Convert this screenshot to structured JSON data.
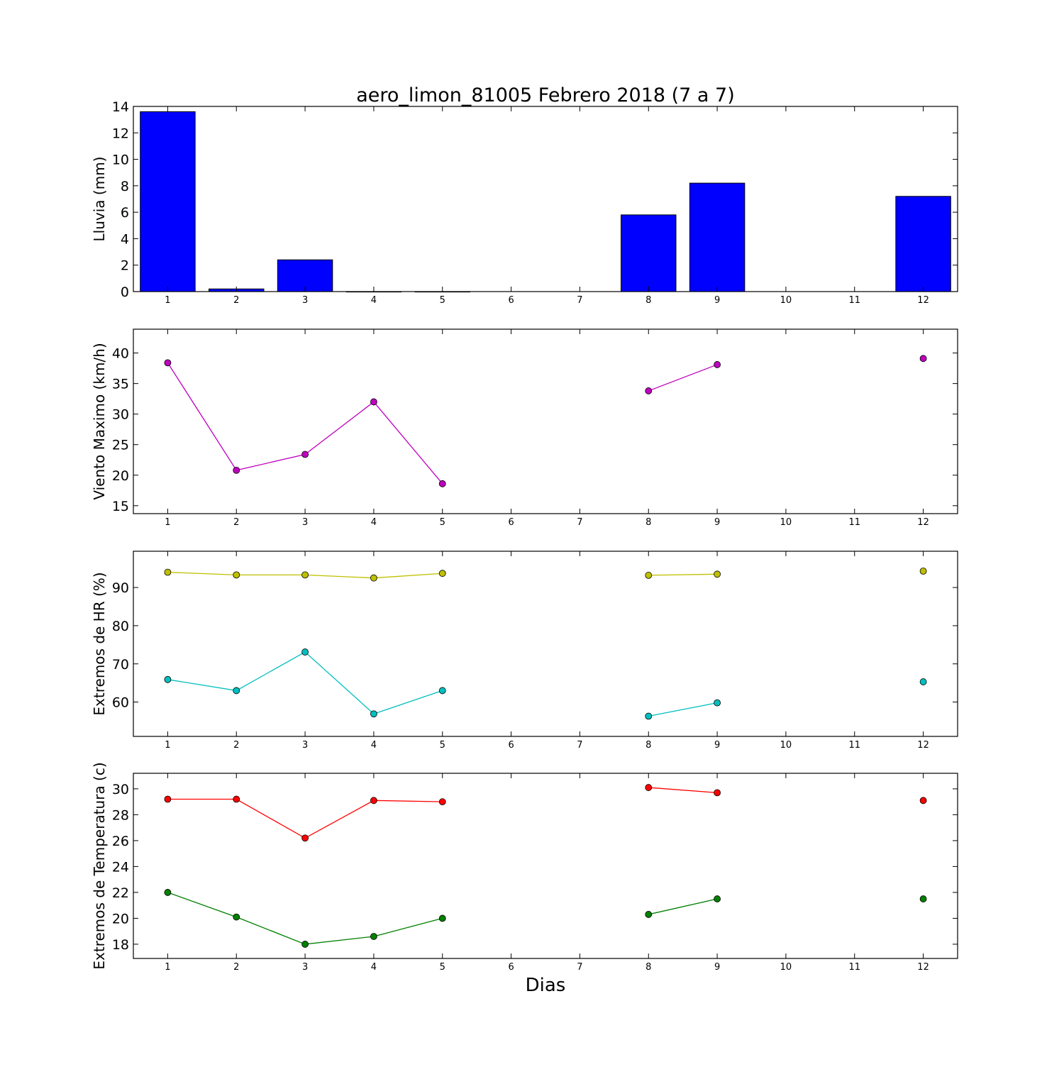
{
  "chart_data": [
    {
      "type": "bar",
      "title": "aero_limon_81005 Febrero 2018  (7 a 7)",
      "ylabel": "Lluvia (mm)",
      "xlabel": "",
      "xlim": [
        0.5,
        12.5
      ],
      "ylim": [
        0,
        14
      ],
      "yticks": [
        0,
        2,
        4,
        6,
        8,
        10,
        12,
        14
      ],
      "xticks": [
        1,
        2,
        3,
        4,
        5,
        6,
        7,
        8,
        9,
        10,
        11,
        12
      ],
      "grid": false,
      "series": [
        {
          "color": "#0000ff",
          "x": [
            1,
            2,
            3,
            4,
            5,
            8,
            9,
            12
          ],
          "values": [
            13.6,
            0.2,
            2.4,
            0.0,
            0.0,
            5.8,
            8.2,
            7.2
          ]
        }
      ]
    },
    {
      "type": "line",
      "ylabel": "Viento Maximo (km/h)",
      "xlabel": "",
      "xlim": [
        0.5,
        12.5
      ],
      "ylim": [
        13.7,
        43.9
      ],
      "yticks": [
        15,
        20,
        25,
        30,
        35,
        40
      ],
      "xticks": [
        1,
        2,
        3,
        4,
        5,
        6,
        7,
        8,
        9,
        10,
        11,
        12
      ],
      "grid": false,
      "series": [
        {
          "color": "#bf00bf",
          "x": [
            1,
            2,
            3,
            4,
            5,
            6,
            7,
            8,
            9,
            10,
            11,
            12
          ],
          "values": [
            38.4,
            20.8,
            23.4,
            32.0,
            18.6,
            null,
            null,
            33.8,
            38.1,
            null,
            null,
            39.1
          ]
        }
      ]
    },
    {
      "type": "line",
      "ylabel": "Extremos de HR (%)",
      "xlabel": "",
      "xlim": [
        0.5,
        12.5
      ],
      "ylim": [
        51.0,
        99.5
      ],
      "yticks": [
        60,
        70,
        80,
        90
      ],
      "xticks": [
        1,
        2,
        3,
        4,
        5,
        6,
        7,
        8,
        9,
        10,
        11,
        12
      ],
      "grid": false,
      "series": [
        {
          "color": "#bfbf00",
          "x": [
            1,
            2,
            3,
            4,
            5,
            6,
            7,
            8,
            9,
            10,
            11,
            12
          ],
          "values": [
            94.0,
            93.3,
            93.3,
            92.5,
            93.7,
            null,
            null,
            93.2,
            93.5,
            null,
            null,
            94.3
          ]
        },
        {
          "color": "#00bfbf",
          "x": [
            1,
            2,
            3,
            4,
            5,
            6,
            7,
            8,
            9,
            10,
            11,
            12
          ],
          "values": [
            65.9,
            63.0,
            73.1,
            56.9,
            63.0,
            null,
            null,
            56.3,
            59.8,
            null,
            null,
            65.3
          ]
        }
      ]
    },
    {
      "type": "line",
      "ylabel": "Extremos de Temperatura (c)",
      "xlabel": "Dias",
      "xlim": [
        0.5,
        12.5
      ],
      "ylim": [
        16.9,
        31.2
      ],
      "yticks": [
        18,
        20,
        22,
        24,
        26,
        28,
        30
      ],
      "xticks": [
        1,
        2,
        3,
        4,
        5,
        6,
        7,
        8,
        9,
        10,
        11,
        12
      ],
      "grid": false,
      "series": [
        {
          "color": "#ff0000",
          "x": [
            1,
            2,
            3,
            4,
            5,
            6,
            7,
            8,
            9,
            10,
            11,
            12
          ],
          "values": [
            29.2,
            29.2,
            26.2,
            29.1,
            29.0,
            null,
            null,
            30.1,
            29.7,
            null,
            null,
            29.1
          ]
        },
        {
          "color": "#007f00",
          "x": [
            1,
            2,
            3,
            4,
            5,
            6,
            7,
            8,
            9,
            10,
            11,
            12
          ],
          "values": [
            22.0,
            20.1,
            18.0,
            18.6,
            20.0,
            null,
            null,
            20.3,
            21.5,
            null,
            null,
            21.5
          ]
        }
      ]
    }
  ]
}
